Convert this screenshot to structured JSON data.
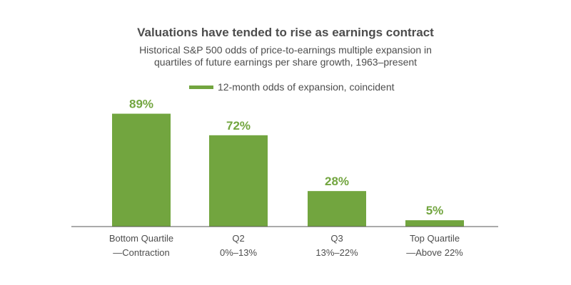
{
  "chart_data": {
    "type": "bar",
    "title": "Valuations have tended to rise as earnings contract",
    "subtitle_lines": [
      "Historical S&P 500 odds of price-to-earnings multiple expansion in",
      "quartiles of future earnings per share growth, 1963–present"
    ],
    "categories": [
      [
        "Bottom Quartile",
        "—Contraction"
      ],
      [
        "Q2",
        "0%–13%"
      ],
      [
        "Q3",
        "13%–22%"
      ],
      [
        "Top Quartile",
        "—Above 22%"
      ]
    ],
    "series": [
      {
        "name": "12-month odds of expansion, coincident",
        "values": [
          89,
          72,
          28,
          5
        ]
      }
    ],
    "value_labels": [
      "89%",
      "72%",
      "28%",
      "5%"
    ],
    "ylim": [
      0,
      100
    ],
    "xlabel": "",
    "ylabel": "",
    "grid": false,
    "legend_position": "top"
  },
  "colors": {
    "bar": "#72a53f",
    "label": "#72a53f",
    "text": "#4d4d4d",
    "axis": "#555555"
  }
}
